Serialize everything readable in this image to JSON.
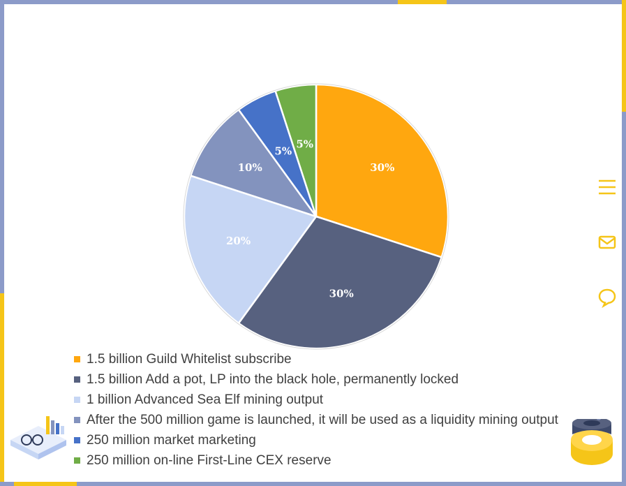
{
  "chart_data": {
    "type": "pie",
    "slices": [
      {
        "label": "1.5 billion Guild Whitelist subscribe",
        "value": 30,
        "data_label": "30%",
        "color": "#FFA70F"
      },
      {
        "label": "1.5 billion Add a pot, LP into the black hole, permanently locked",
        "value": 30,
        "data_label": "30%",
        "color": "#57617F"
      },
      {
        "label": "1 billion Advanced Sea Elf mining output",
        "value": 20,
        "data_label": "20%",
        "color": "#C6D6F4"
      },
      {
        "label": "After the 500 million game is launched, it will be used as a liquidity mining output",
        "value": 10,
        "data_label": "10%",
        "color": "#8393BE"
      },
      {
        "label": "250 million market marketing",
        "value": 5,
        "data_label": "5%",
        "color": "#4672C8"
      },
      {
        "label": "250 million on-line First-Line CEX reserve",
        "value": 5,
        "data_label": "5%",
        "color": "#70AD47"
      }
    ],
    "legend_position": "bottom-left"
  },
  "ui": {
    "accent_color": "#F5C518",
    "icons": [
      "menu-icon",
      "mail-icon",
      "chat-icon"
    ]
  }
}
